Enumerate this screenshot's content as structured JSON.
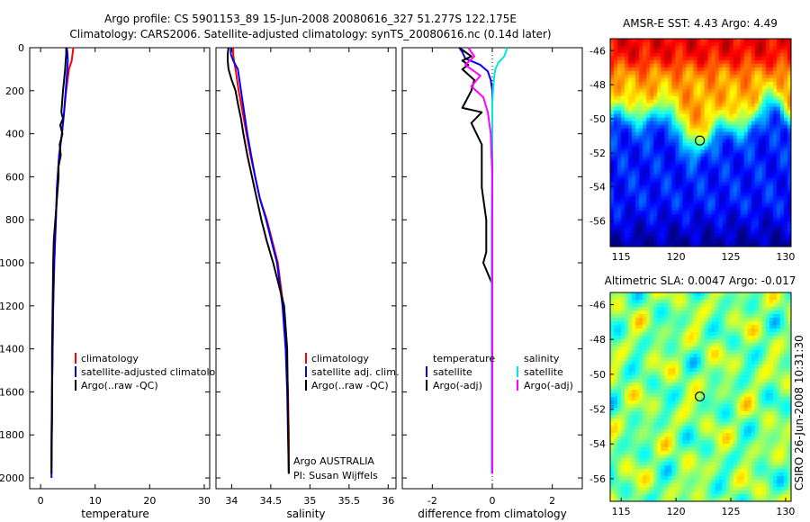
{
  "figure": {
    "title_line1": "Argo profile: CS 5901153_89 15-Jun-2008 20080616_327 51.277S 122.175E",
    "title_line2": "Climatology: CARS2006. Satellite-adjusted climatology: synTS_20080616.nc (0.14d later)",
    "timestamp": "CSIRO 26-Jun-2008 10:31:30"
  },
  "colors": {
    "climatology": "#ff0000",
    "satellite": "#0000ff",
    "argo": "#000000",
    "salinity_satellite": "#00e5e5",
    "salinity_argo": "#ff00ff"
  },
  "chart_data": [
    {
      "type": "line",
      "xlabel": "temperature",
      "ylabel": "",
      "xlim": [
        -2,
        31
      ],
      "ylim": [
        2050,
        0
      ],
      "y_reversed": true,
      "xticks": [
        0,
        10,
        20,
        30
      ],
      "yticks": [
        0,
        200,
        400,
        600,
        800,
        1000,
        1200,
        1400,
        1600,
        1800,
        2000
      ],
      "legend": [
        "climatology",
        "satellite-adjusted climatology",
        "Argo(..raw -QC)"
      ],
      "series": [
        {
          "name": "climatology",
          "color": "#ff0000",
          "x": [
            6.0,
            5.9,
            5.7,
            5.2,
            4.7,
            4.3,
            3.9,
            3.4,
            3.0,
            2.8,
            2.5,
            2.3,
            2.2,
            2.1,
            2.1,
            2.0,
            2.0
          ],
          "y": [
            0,
            20,
            60,
            100,
            200,
            300,
            400,
            500,
            650,
            800,
            1000,
            1200,
            1400,
            1600,
            1750,
            1850,
            1950
          ]
        },
        {
          "name": "satellite-adjusted climatology",
          "color": "#0000ff",
          "x": [
            4.8,
            4.9,
            5.0,
            4.9,
            4.6,
            4.3,
            3.9,
            3.4,
            3.0,
            2.8,
            2.5,
            2.3,
            2.2,
            2.1,
            2.0,
            2.0
          ],
          "y": [
            0,
            20,
            60,
            100,
            200,
            300,
            400,
            500,
            650,
            800,
            1000,
            1200,
            1400,
            1600,
            1800,
            2000
          ]
        },
        {
          "name": "Argo(..raw -QC)",
          "color": "#000000",
          "x": [
            4.7,
            4.7,
            4.6,
            4.5,
            4.1,
            3.8,
            4.1,
            3.6,
            4.0,
            3.5,
            3.7,
            3.3,
            3.3,
            3.0,
            2.7,
            2.4,
            2.3,
            2.2,
            2.1,
            2.1,
            2.0
          ],
          "y": [
            0,
            30,
            60,
            100,
            200,
            300,
            330,
            360,
            400,
            450,
            500,
            550,
            600,
            700,
            800,
            900,
            1000,
            1200,
            1400,
            1700,
            1980
          ]
        }
      ]
    },
    {
      "type": "line",
      "xlabel": "salinity",
      "ylabel": "",
      "xlim": [
        33.8,
        36.1
      ],
      "ylim": [
        2050,
        0
      ],
      "y_reversed": true,
      "xticks": [
        34,
        34.5,
        35,
        35.5,
        36
      ],
      "xtick_labels": [
        "34",
        "34.5",
        "35",
        "35.5",
        "36"
      ],
      "legend": [
        "climatology",
        "satellite adj. clim.",
        "Argo(..raw -QC)"
      ],
      "annotations": [
        "Argo AUSTRALIA",
        "PI: Susan Wijffels"
      ],
      "series": [
        {
          "name": "climatology",
          "color": "#ff0000",
          "x": [
            34.02,
            34.02,
            34.03,
            34.05,
            34.09,
            34.14,
            34.19,
            34.24,
            34.3,
            34.36,
            34.45,
            34.52,
            34.59,
            34.66,
            34.7,
            34.72,
            34.73,
            34.73
          ],
          "y": [
            0,
            30,
            60,
            100,
            200,
            300,
            400,
            500,
            600,
            700,
            800,
            900,
            1000,
            1200,
            1400,
            1600,
            1800,
            1980
          ]
        },
        {
          "name": "satellite adj. clim.",
          "color": "#0000ff",
          "x": [
            33.99,
            33.99,
            34.02,
            34.08,
            34.12,
            34.16,
            34.2,
            34.25,
            34.3,
            34.36,
            34.44,
            34.51,
            34.58,
            34.65,
            34.69,
            34.71,
            34.72,
            34.73
          ],
          "y": [
            0,
            30,
            60,
            100,
            200,
            300,
            400,
            500,
            600,
            700,
            800,
            900,
            1000,
            1200,
            1400,
            1600,
            1800,
            1980
          ]
        },
        {
          "name": "Argo(..raw -QC)",
          "color": "#000000",
          "x": [
            33.96,
            33.95,
            33.95,
            33.96,
            34.0,
            34.05,
            34.08,
            34.12,
            34.15,
            34.2,
            34.26,
            34.32,
            34.38,
            34.45,
            34.53,
            34.6,
            34.67,
            34.71,
            34.72,
            34.73
          ],
          "y": [
            0,
            30,
            60,
            100,
            150,
            200,
            260,
            330,
            400,
            500,
            600,
            700,
            800,
            900,
            1000,
            1100,
            1200,
            1400,
            1700,
            1980
          ]
        }
      ]
    },
    {
      "type": "line",
      "xlabel": "difference from climatology",
      "ylabel": "",
      "xlim": [
        -3,
        3
      ],
      "ylim": [
        2050,
        0
      ],
      "y_reversed": true,
      "xticks": [
        -2,
        0,
        2
      ],
      "legend_groups": [
        {
          "heading": "temperature",
          "entries": [
            "satellite",
            "Argo(-adj)"
          ]
        },
        {
          "heading": "salinity",
          "entries": [
            "satellite",
            "Argo(-adj)"
          ]
        }
      ],
      "series": [
        {
          "name": "temperature satellite",
          "color": "#0000ff",
          "x": [
            -1.1,
            -1.0,
            -0.9,
            -0.4,
            -0.15,
            -0.05,
            0.0,
            0.0,
            0.0,
            0.0,
            0.0,
            0.0,
            0.0,
            0.0,
            0.0
          ],
          "y": [
            0,
            20,
            50,
            80,
            110,
            150,
            200,
            300,
            400,
            600,
            800,
            1000,
            1300,
            1600,
            1980
          ]
        },
        {
          "name": "temperature Argo(-adj)",
          "color": "#000000",
          "x": [
            -1.1,
            -0.7,
            -1.0,
            -0.8,
            -1.0,
            -0.6,
            -0.7,
            -1.0,
            -0.35,
            -0.7,
            -0.35,
            -0.35,
            -0.2,
            -0.2,
            -0.3,
            0.0,
            0.0,
            0.0,
            0.0
          ],
          "y": [
            0,
            40,
            60,
            80,
            100,
            150,
            200,
            280,
            300,
            350,
            450,
            650,
            800,
            950,
            1000,
            1100,
            1300,
            1600,
            1980
          ]
        },
        {
          "name": "salinity satellite",
          "color": "#00e5e5",
          "x": [
            0.5,
            0.45,
            0.4,
            0.2,
            0.1,
            0.05,
            0.0,
            0.0,
            -0.02,
            -0.02,
            -0.02,
            -0.02
          ],
          "y": [
            0,
            20,
            40,
            70,
            100,
            150,
            250,
            400,
            800,
            1200,
            1600,
            1980
          ]
        },
        {
          "name": "salinity Argo(-adj)",
          "color": "#ff00ff",
          "x": [
            -0.8,
            -0.6,
            -0.9,
            -0.4,
            -0.7,
            -0.3,
            -0.15,
            -0.05,
            0.0,
            0.0,
            0.0
          ],
          "y": [
            0,
            40,
            80,
            130,
            180,
            230,
            300,
            400,
            600,
            1000,
            1980
          ]
        }
      ]
    },
    {
      "type": "heatmap",
      "title": "AMSR-E SST: 4.43 Argo: 4.49",
      "xlim": [
        114,
        130.5
      ],
      "ylim": [
        -57.5,
        -45.3
      ],
      "xticks": [
        115,
        120,
        125,
        130
      ],
      "yticks": [
        -46,
        -48,
        -50,
        -52,
        -54,
        -56
      ],
      "marker": {
        "lon": 122.175,
        "lat": -51.277
      },
      "colormap": "jet"
    },
    {
      "type": "heatmap",
      "title": "Altimetric SLA: 0.0047 Argo: -0.017",
      "xlim": [
        114,
        130.5
      ],
      "ylim": [
        -57.3,
        -45.3
      ],
      "xticks": [
        115,
        120,
        125,
        130
      ],
      "yticks": [
        -46,
        -48,
        -50,
        -52,
        -54,
        -56
      ],
      "marker": {
        "lon": 122.175,
        "lat": -51.277
      },
      "colormap": "jet"
    }
  ]
}
